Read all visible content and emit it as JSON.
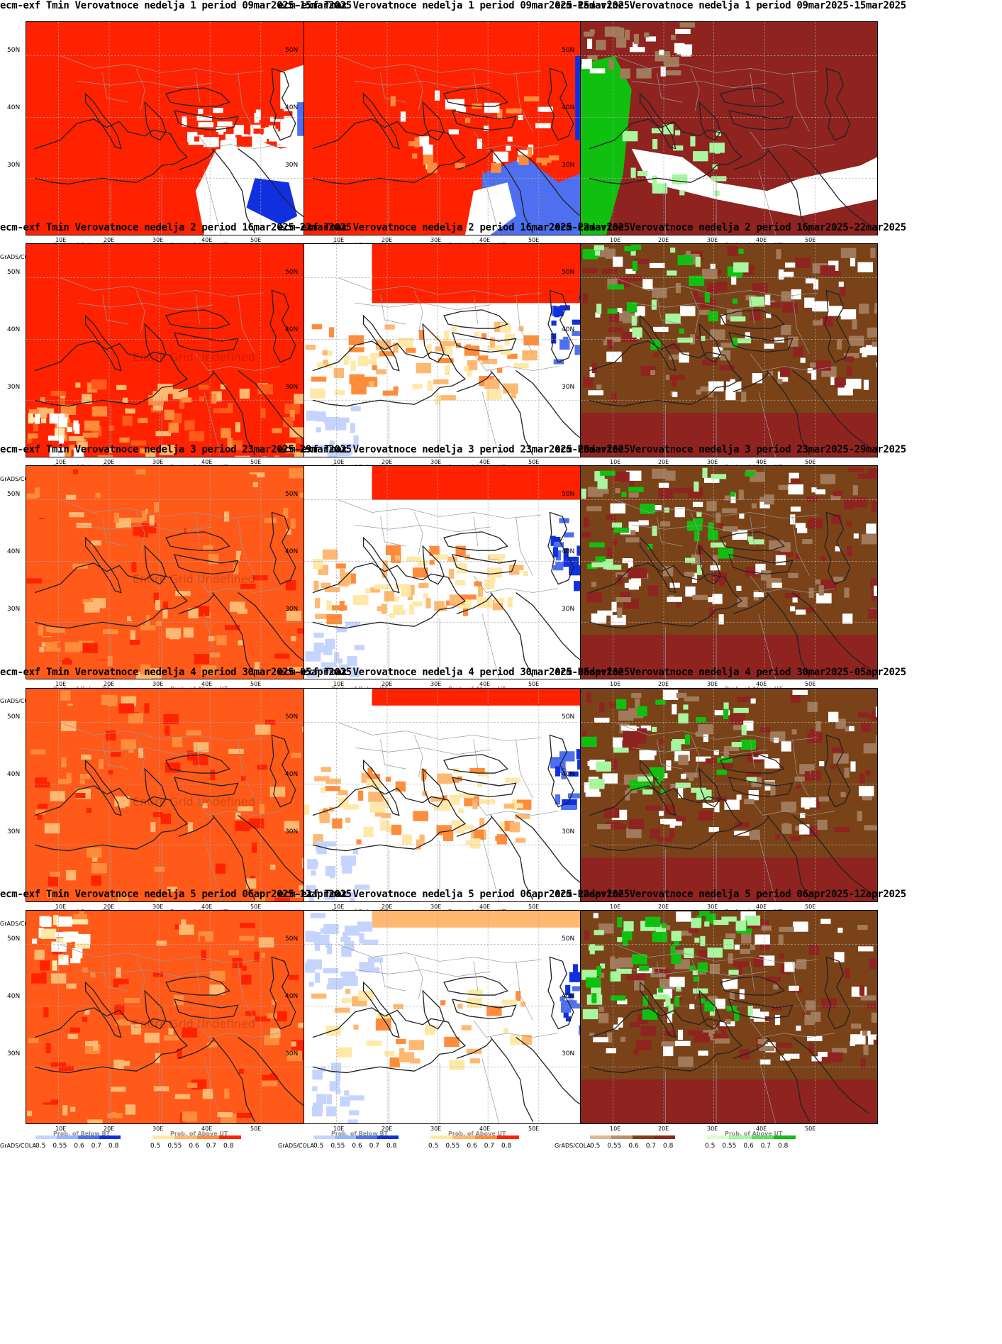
{
  "ui": {
    "lat_labels": [
      "50N",
      "40N",
      "30N"
    ],
    "lon_labels": [
      "10E",
      "20E",
      "30E",
      "40E",
      "50E"
    ],
    "grads_label": "GrADS/COLA",
    "scale_ticks_first": [
      "0.5",
      "0.55",
      "0.6",
      "0.7",
      "0.8"
    ],
    "scale_ticks_rest": [
      "0.5",
      "0.55",
      "0.6",
      "0.7",
      "0.8"
    ],
    "watermark": "Entire Grid Undefined",
    "legend_below": "Prob. of Below BT",
    "legend_above": "Prob. of Above UT"
  },
  "colors": {
    "strong_red": "#ff2200",
    "orange_red": "#ff5a1a",
    "orange": "#ff8c3a",
    "light_orange": "#ffb870",
    "pale_yellow": "#ffe8a8",
    "dark_blue": "#1030e0",
    "mid_blue": "#4d6ff0",
    "light_blue": "#c5d4ff",
    "dark_red_brown": "#8e2320",
    "brown": "#7a4218",
    "light_brown": "#a07a5a",
    "green": "#10c010",
    "light_green": "#a8f7a0",
    "white": "#ffffff",
    "grid": "#aaaaaa"
  },
  "legends": {
    "tmin": [
      {
        "title": "Prob. of Below BT",
        "colors": [
          "#c5d4ff",
          "#9ab4ff",
          "#4d6ff0",
          "#1030e0"
        ]
      },
      {
        "title": "Prob. of Above UT",
        "colors": [
          "#ffe8a8",
          "#ffb870",
          "#ff8c3a",
          "#ff2200"
        ]
      }
    ],
    "tmax": [
      {
        "title": "Prob. of Below BT",
        "colors": [
          "#c5d4ff",
          "#9ab4ff",
          "#4d6ff0",
          "#1030e0"
        ]
      },
      {
        "title": "Prob. of Above UT",
        "colors": [
          "#ffe8a8",
          "#ffb870",
          "#ff8c3a",
          "#ff2200"
        ]
      }
    ],
    "pad": [
      {
        "title": "",
        "colors": [
          "#d8b896",
          "#b89070",
          "#7a4218",
          "#8e2320"
        ]
      },
      {
        "title": "Prob. of Above UT",
        "colors": [
          "#d8ffd0",
          "#a8f7a0",
          "#60e060",
          "#10c010"
        ]
      }
    ]
  },
  "panels": [
    {
      "title": "ecm-exf Tmin Verovatnoce nedelja 1 period 09mar2025-15mar2025",
      "kind": "tmin",
      "week": 1,
      "base": "#ff2200",
      "watermark": false
    },
    {
      "title": "ecm-exf Tmax Verovatnoce nedelja 1 period 09mar2025-15mar2025",
      "kind": "tmax",
      "week": 1,
      "base": "#ff2200",
      "watermark": false
    },
    {
      "title": "ecm-Padavine Verovatnoce nedelja 1 period 09mar2025-15mar2025",
      "kind": "pad",
      "week": 1,
      "base": "#8e2320",
      "watermark": false
    },
    {
      "title": "ecm-exf Tmin Verovatnoce nedelja 2 period 16mar2025-22mar2025",
      "kind": "tmin",
      "week": 2,
      "base": "#ff2200",
      "watermark": true
    },
    {
      "title": "ecm-exf Tmax Verovatnoce nedelja 2 period 16mar2025-22mar2025",
      "kind": "tmax",
      "week": 2,
      "base": "#ffffff",
      "watermark": false
    },
    {
      "title": "ecm-Padavine Verovatnoce nedelja 2 period 16mar2025-22mar2025",
      "kind": "pad",
      "week": 2,
      "base": "#7a4218",
      "watermark": false
    },
    {
      "title": "ecm-exf Tmin Verovatnoce nedelja 3 period 23mar2025-29mar2025",
      "kind": "tmin",
      "week": 3,
      "base": "#ff5a1a",
      "watermark": true
    },
    {
      "title": "ecm-exf Tmax Verovatnoce nedelja 3 period 23mar2025-29mar2025",
      "kind": "tmax",
      "week": 3,
      "base": "#ffffff",
      "watermark": false
    },
    {
      "title": "ecm-Padavine Verovatnoce nedelja 3 period 23mar2025-29mar2025",
      "kind": "pad",
      "week": 3,
      "base": "#7a4218",
      "watermark": false
    },
    {
      "title": "ecm-exf Tmin Verovatnoce nedelja 4 period 30mar2025-05apr2025",
      "kind": "tmin",
      "week": 4,
      "base": "#ff5a1a",
      "watermark": true
    },
    {
      "title": "ecm-exf Tmax Verovatnoce nedelja 4 period 30mar2025-05apr2025",
      "kind": "tmax",
      "week": 4,
      "base": "#ffffff",
      "watermark": false
    },
    {
      "title": "ecm-Padavine Verovatnoce nedelja 4 period 30mar2025-05apr2025",
      "kind": "pad",
      "week": 4,
      "base": "#7a4218",
      "watermark": false
    },
    {
      "title": "ecm-exf Tmin Verovatnoce nedelja 5 period 06apr2025-12apr2025",
      "kind": "tmin",
      "week": 5,
      "base": "#ff5a1a",
      "watermark": true
    },
    {
      "title": "ecm-exf Tmax Verovatnoce nedelja 5 period 06apr2025-12apr2025",
      "kind": "tmax",
      "week": 5,
      "base": "#ffffff",
      "watermark": false
    },
    {
      "title": "ecm-Padavine Verovatnoce nedelja 5 period 06apr2025-12apr2025",
      "kind": "pad",
      "week": 5,
      "base": "#7a4218",
      "watermark": false
    }
  ]
}
